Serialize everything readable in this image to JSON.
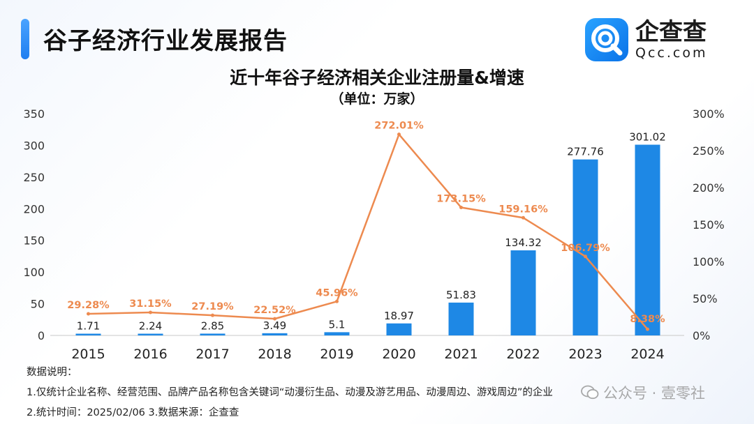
{
  "header": {
    "title": "谷子经济行业发展报告"
  },
  "logo": {
    "cn": "企查查",
    "en": "Qcc.com"
  },
  "chart_data": {
    "type": "bar+line",
    "title": "近十年谷子经济相关企业注册量&增速",
    "subtitle": "（单位：万家）",
    "categories": [
      "2015",
      "2016",
      "2017",
      "2018",
      "2019",
      "2020",
      "2021",
      "2022",
      "2023",
      "2024"
    ],
    "series": [
      {
        "type": "bar",
        "axis": "left",
        "color": "#1e88e5",
        "values": [
          1.71,
          2.24,
          2.85,
          3.49,
          5.1,
          18.97,
          51.83,
          134.32,
          277.76,
          301.02
        ],
        "labels": [
          "1.71",
          "2.24",
          "2.85",
          "3.49",
          "5.1",
          "18.97",
          "51.83",
          "134.32",
          "277.76",
          "301.02"
        ]
      },
      {
        "type": "line",
        "axis": "right",
        "color": "#ed8a4f",
        "values": [
          29.28,
          31.15,
          27.19,
          22.52,
          45.96,
          272.01,
          173.15,
          159.16,
          106.79,
          8.38
        ],
        "labels": [
          "29.28%",
          "31.15%",
          "27.19%",
          "22.52%",
          "45.96%",
          "272.01%",
          "173.15%",
          "159.16%",
          "106.79%",
          "8.38%"
        ]
      }
    ],
    "y_left": {
      "ylim": [
        0,
        350
      ],
      "ticks": [
        "0",
        "50",
        "100",
        "150",
        "200",
        "250",
        "300",
        "350"
      ]
    },
    "y_right": {
      "ylim": [
        0,
        300
      ],
      "ticks": [
        "0%",
        "50%",
        "100%",
        "150%",
        "200%",
        "250%",
        "300%"
      ]
    },
    "grid": false,
    "legend": "none"
  },
  "notes": {
    "heading": "数据说明：",
    "line1": "1.仅统计企业名称、经营范围、品牌产品名称包含关键词“动漫衍生品、动漫及游艺用品、动漫周边、游戏周边”的企业",
    "line2": "2.统计时间：2025/02/06    3.数据来源：企查查"
  },
  "watermark": {
    "text": "公众号 · 壹零社"
  }
}
